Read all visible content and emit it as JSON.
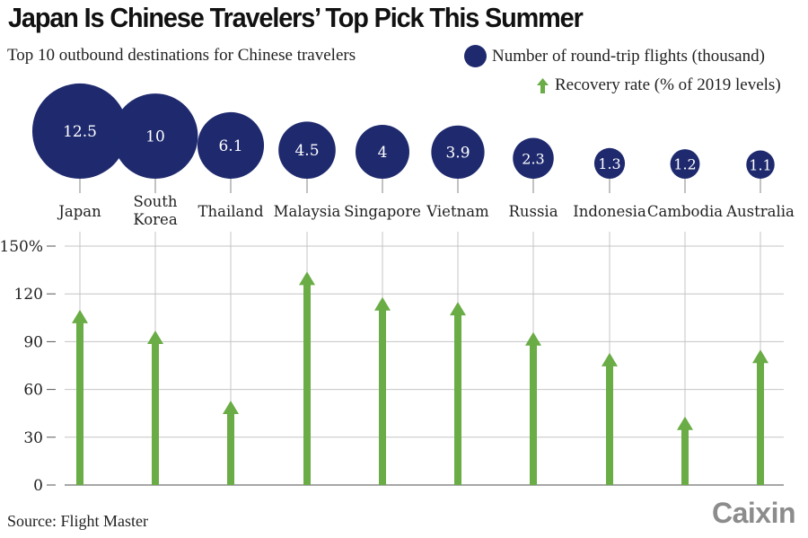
{
  "header": {
    "title": "Japan Is Chinese Travelers’ Top Pick This Summer",
    "subtitle": "Top 10 outbound destinations for Chinese travelers"
  },
  "legend": {
    "flights_label": "Number of round-trip flights (thousand)",
    "recovery_label": "Recovery rate (% of 2019 levels)"
  },
  "colors": {
    "bubble": "#1f2a6e",
    "arrow": "#6aac45",
    "grid": "#c4c4c4",
    "baseline": "#8a8a8a",
    "logo": "#8c8c8c"
  },
  "footer": {
    "source": "Source: Flight Master",
    "logo": "Caixin"
  },
  "chart_data": [
    {
      "type": "scatter",
      "title": "Number of round-trip flights (thousand)",
      "subtitle": "Top 10 outbound destinations for Chinese travelers",
      "categories": [
        "Japan",
        "South Korea",
        "Thailand",
        "Malaysia",
        "Singapore",
        "Vietnam",
        "Russia",
        "Indonesia",
        "Cambodia",
        "Australia"
      ],
      "values": [
        12.5,
        10,
        6.1,
        4.5,
        4,
        3.9,
        2.3,
        1.3,
        1.2,
        1.1
      ],
      "encoding": "bubble area",
      "labels": [
        "12.5",
        "10",
        "6.1",
        "4.5",
        "4",
        "3.9",
        "2.3",
        "1.3",
        "1.2",
        "1.1"
      ]
    },
    {
      "type": "bar",
      "title": "Recovery rate (% of 2019 levels)",
      "categories": [
        "Japan",
        "South Korea",
        "Thailand",
        "Malaysia",
        "Singapore",
        "Vietnam",
        "Russia",
        "Indonesia",
        "Cambodia",
        "Australia"
      ],
      "values": [
        110,
        97,
        53,
        134,
        118,
        115,
        96,
        83,
        43,
        85
      ],
      "xlabel": "",
      "ylabel": "",
      "yticks": [
        "0",
        "30",
        "60",
        "90",
        "120",
        "150%"
      ],
      "ylim": [
        0,
        150
      ],
      "grid": true,
      "marker": "arrow"
    }
  ],
  "source": "Flight Master"
}
